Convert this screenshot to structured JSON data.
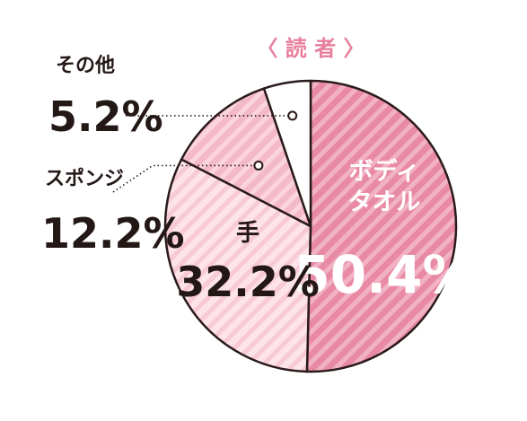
{
  "chart_data": {
    "type": "pie",
    "title": "〈 読 者 〉",
    "slices": [
      {
        "label": "ボディ\nタオル",
        "value": 50.4,
        "value_label": "50.4%",
        "color": "#e98aa5",
        "stripe": "#f2b2c5"
      },
      {
        "label": "手",
        "value": 32.2,
        "value_label": "32.2%",
        "color": "#fde3ea",
        "stripe": "#f8c9d6"
      },
      {
        "label": "スポンジ",
        "value": 12.2,
        "value_label": "12.2%",
        "color": "#f4b9c9",
        "stripe": "#fad4df"
      },
      {
        "label": "その他",
        "value": 5.2,
        "value_label": "5.2%",
        "color": "#ffffff",
        "stripe": "#ffffff"
      }
    ],
    "start_angle": "12 o'clock",
    "direction": "clockwise",
    "title_color": "#e77f9c",
    "outline_color": "#2a1a1a",
    "text_dark": "#231815",
    "text_light": "#ffffff"
  }
}
